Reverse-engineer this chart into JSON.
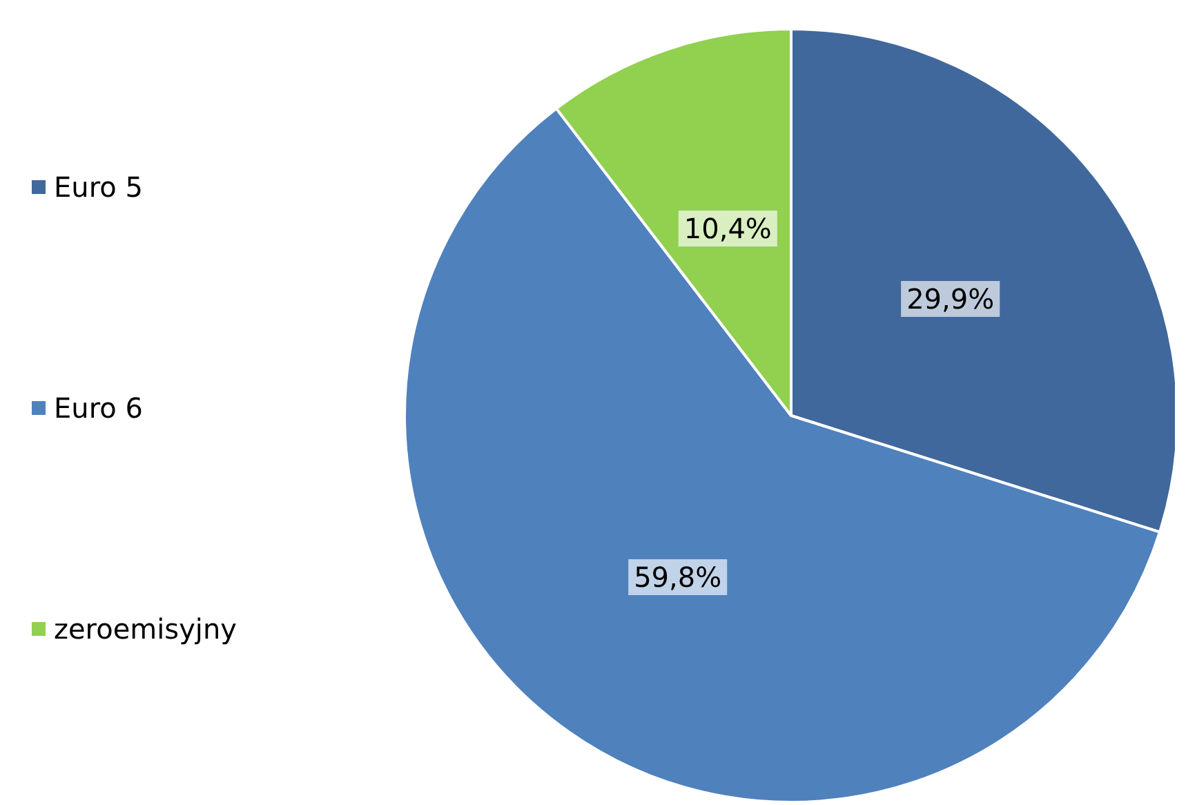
{
  "chart_data": {
    "type": "pie",
    "categories": [
      "Euro 5",
      "Euro 6",
      "zeroemisyjny"
    ],
    "values": [
      29.9,
      59.8,
      10.4
    ],
    "value_labels": [
      "29,9%",
      "59,8%",
      "10,4%"
    ],
    "colors": [
      "#41689c",
      "#4f81bd",
      "#92d050"
    ],
    "legend": "left"
  }
}
